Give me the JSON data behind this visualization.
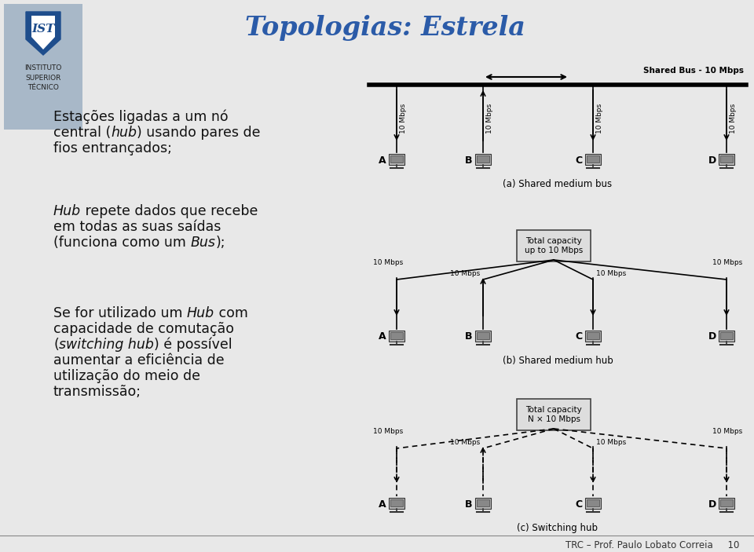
{
  "title": "Topologias: Estrela",
  "title_color": "#2B5BA8",
  "bg_color": "#E8E8E8",
  "logo_bg": "#A8B8C8",
  "footer": "TRC – Prof. Paulo Lobato Correia     10",
  "diagram_labels": [
    "(a) Shared medium bus",
    "(b) Shared medium hub",
    "(c) Switching hub"
  ],
  "shared_bus_label": "Shared Bus - 10 Mbps",
  "hub_box_label1": "Total capacity\nup to 10 Mbps",
  "hub_box_label2": "Total capacity\nN × 10 Mbps",
  "node_labels": [
    "A",
    "B",
    "C",
    "D"
  ],
  "speed_label": "10 Mbps"
}
